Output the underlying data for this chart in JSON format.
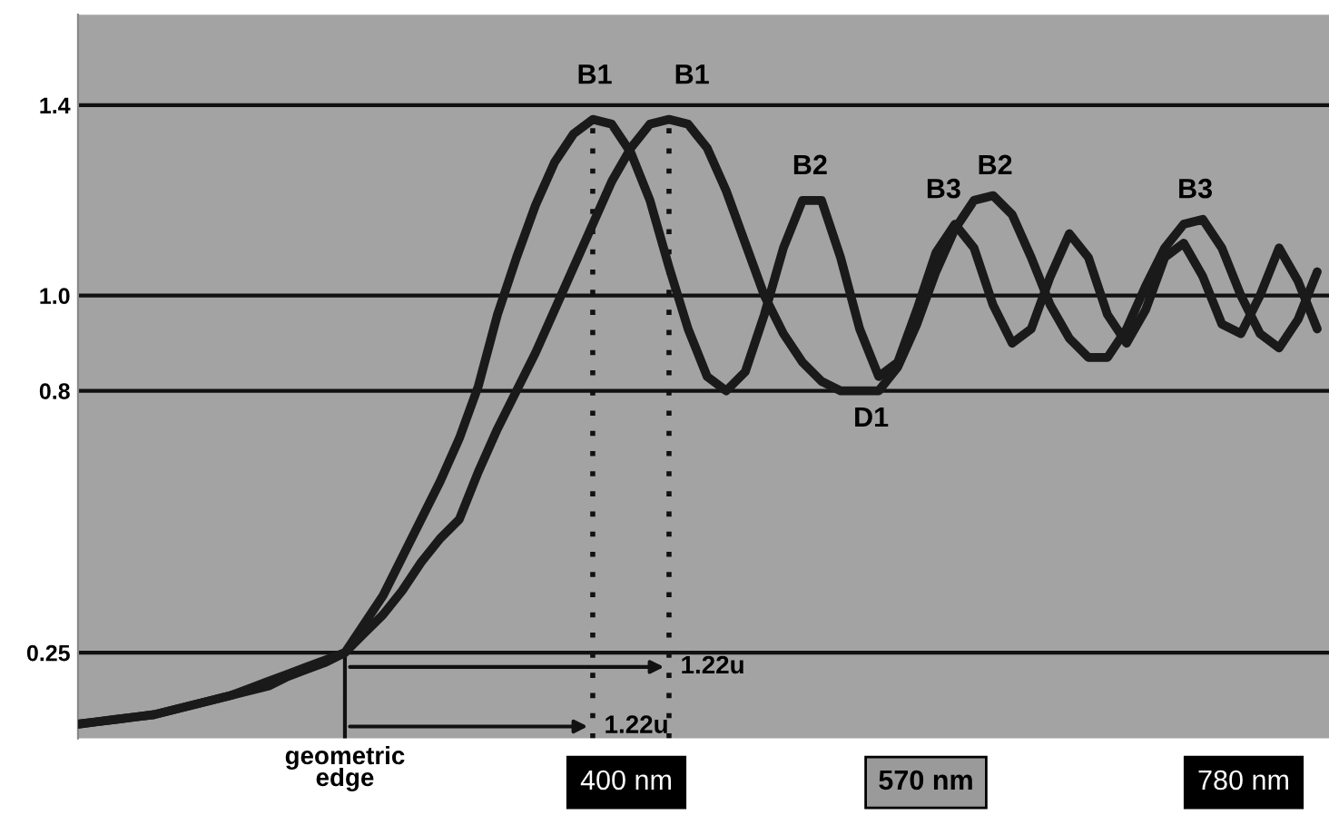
{
  "chart_data": {
    "type": "line",
    "categories": [
      null,
      null,
      null,
      null,
      null,
      null,
      null,
      null,
      null,
      null,
      null,
      null,
      null,
      null,
      "geometric\nedge",
      null,
      null,
      null,
      null,
      null,
      null,
      null,
      null,
      null,
      null,
      null,
      null,
      null,
      null,
      null,
      null,
      null,
      null,
      null,
      null,
      null,
      null,
      null,
      null,
      null,
      null,
      null,
      null,
      null,
      null,
      null,
      null,
      null,
      null,
      null,
      null,
      null,
      null,
      null,
      null,
      null,
      null,
      null,
      null,
      null,
      null,
      null,
      null,
      null,
      null,
      null
    ],
    "series": [
      {
        "color": "#1a1a1a",
        "values": [
          0.1,
          0.105,
          0.11,
          0.115,
          0.12,
          0.13,
          0.14,
          0.15,
          0.16,
          0.17,
          0.18,
          0.2,
          0.215,
          0.23,
          0.25,
          0.31,
          0.37,
          0.45,
          0.53,
          0.61,
          0.7,
          0.81,
          0.96,
          1.08,
          1.19,
          1.28,
          1.34,
          1.37,
          1.36,
          1.3,
          1.2,
          1.06,
          0.93,
          0.83,
          0.8,
          0.84,
          0.96,
          1.1,
          1.2,
          1.2,
          1.08,
          0.93,
          0.83,
          0.86,
          0.97,
          1.09,
          1.15,
          1.1,
          0.98,
          0.9,
          0.93,
          1.04,
          1.13,
          1.08,
          0.96,
          0.9,
          0.97,
          1.08,
          1.11,
          1.04,
          0.94,
          0.92,
          1.0,
          1.1,
          1.03,
          0.93
        ]
      },
      {
        "color": "#1a1a1a",
        "values": [
          0.1,
          0.105,
          0.11,
          0.115,
          0.12,
          0.13,
          0.14,
          0.15,
          0.16,
          0.175,
          0.19,
          0.205,
          0.22,
          0.235,
          0.25,
          0.29,
          0.33,
          0.38,
          0.44,
          0.49,
          0.53,
          0.63,
          0.72,
          0.8,
          0.88,
          0.97,
          1.06,
          1.15,
          1.24,
          1.31,
          1.36,
          1.37,
          1.36,
          1.31,
          1.22,
          1.11,
          1.0,
          0.92,
          0.86,
          0.82,
          0.8,
          0.8,
          0.8,
          0.85,
          0.94,
          1.05,
          1.14,
          1.2,
          1.21,
          1.17,
          1.08,
          0.98,
          0.91,
          0.87,
          0.87,
          0.93,
          1.02,
          1.1,
          1.15,
          1.16,
          1.1,
          1.0,
          0.92,
          0.89,
          0.95,
          1.05
        ]
      }
    ],
    "ylim": [
      0.07,
      1.59
    ],
    "yticks": [
      0.25,
      0.8,
      {
        "value": 1.0,
        "label": "1.0"
      },
      1.4
    ],
    "grid": "y",
    "annotations": [
      "1.22u",
      "1.22u",
      "B1",
      "B1",
      "B2",
      "B2",
      "B3",
      "B3",
      "D1",
      "400 nm",
      "570 nm",
      "780 nm"
    ]
  }
}
